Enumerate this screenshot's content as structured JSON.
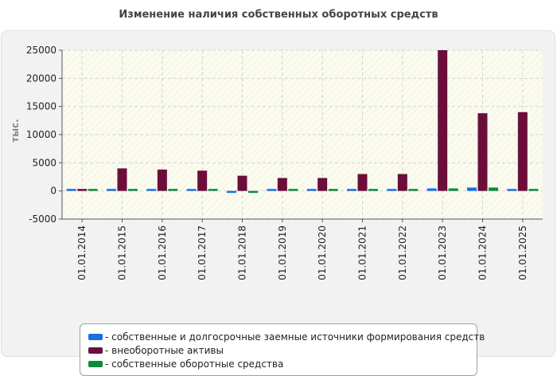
{
  "chart_data": {
    "type": "bar",
    "title": "Изменение наличия собственных оборотных средств",
    "xlabel": "",
    "ylabel": "тыс.",
    "ylim": [
      -5000,
      25000
    ],
    "yticks": [
      -5000,
      0,
      5000,
      10000,
      15000,
      20000,
      25000
    ],
    "grid": true,
    "legend_position": "bottom",
    "categories": [
      "01.01.2014",
      "01.01.2015",
      "01.01.2016",
      "01.01.2017",
      "01.01.2018",
      "01.01.2019",
      "01.01.2020",
      "01.01.2021",
      "01.01.2022",
      "01.01.2023",
      "01.01.2024",
      "01.01.2025"
    ],
    "series": [
      {
        "name": "собственные и долгосрочные заемные источники формирования средств",
        "color": "#1a6fe8",
        "values": [
          150,
          200,
          150,
          150,
          -200,
          150,
          150,
          150,
          200,
          450,
          600,
          100
        ]
      },
      {
        "name": "внеоборотные активы",
        "color": "#6b0f3a",
        "values": [
          100,
          4000,
          3800,
          3600,
          2700,
          2300,
          2300,
          3000,
          3000,
          25000,
          13800,
          14000
        ]
      },
      {
        "name": "собственные оборотные средства",
        "color": "#0f8a3a",
        "values": [
          150,
          150,
          150,
          150,
          -250,
          150,
          150,
          150,
          150,
          450,
          600,
          100
        ]
      }
    ]
  }
}
